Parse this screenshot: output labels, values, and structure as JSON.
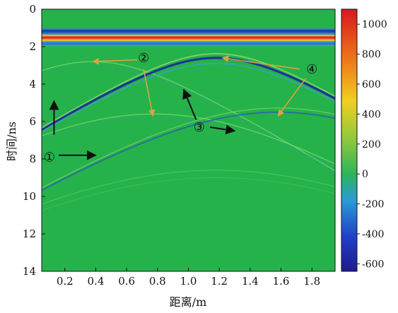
{
  "chart_data": {
    "type": "heatmap",
    "title": "",
    "xlabel": "距离/m",
    "ylabel": "时间/ns",
    "xlim": [
      0.05,
      1.95
    ],
    "ylim": [
      14,
      0
    ],
    "x_ticks": [
      "0.2",
      "0.4",
      "0.6",
      "0.8",
      "1.0",
      "1.2",
      "1.4",
      "1.6",
      "1.8"
    ],
    "x_tick_values": [
      0.2,
      0.4,
      0.6,
      0.8,
      1.0,
      1.2,
      1.4,
      1.6,
      1.8
    ],
    "y_ticks": [
      "0",
      "2",
      "4",
      "6",
      "8",
      "10",
      "12",
      "14"
    ],
    "y_tick_values": [
      0,
      2,
      4,
      6,
      8,
      10,
      12,
      14
    ],
    "colorbar": {
      "min": -650,
      "max": 1100,
      "ticks": [
        "1000",
        "800",
        "600",
        "400",
        "200",
        "0",
        "-200",
        "-400",
        "-600"
      ],
      "tick_values": [
        1000,
        800,
        600,
        400,
        200,
        0,
        -200,
        -400,
        -600
      ],
      "colormap": "jet"
    },
    "background_color": "#26b24a",
    "direct_wave": {
      "time_ns": [
        1.0,
        2.0
      ],
      "peak_value": 1050,
      "trough_value": -620
    },
    "hyperbolas": [
      {
        "apex_x": 0.38,
        "apex_t": 2.8,
        "strength": "weak"
      },
      {
        "apex_x": 0.78,
        "apex_t": 5.6,
        "strength": "weak"
      },
      {
        "apex_x": 1.18,
        "apex_t": 2.6,
        "strength": "strong"
      },
      {
        "apex_x": 1.58,
        "apex_t": 5.5,
        "strength": "medium"
      },
      {
        "apex_x": 1.18,
        "apex_t": 8.6,
        "strength": "faint"
      }
    ],
    "annotations": [
      {
        "label": "①",
        "x": 0.1,
        "t": 7.9
      },
      {
        "label": "②",
        "x": 0.71,
        "t": 2.6
      },
      {
        "label": "③",
        "x": 1.07,
        "t": 6.3
      },
      {
        "label": "④",
        "x": 1.8,
        "t": 3.2
      }
    ],
    "annotation_arrows": [
      {
        "from_x": 0.13,
        "from_t": 6.7,
        "to_x": 0.13,
        "to_t": 4.9,
        "color": "#111111"
      },
      {
        "from_x": 0.16,
        "from_t": 7.8,
        "to_x": 0.4,
        "to_t": 7.8,
        "color": "#111111"
      },
      {
        "from_x": 0.67,
        "from_t": 2.7,
        "to_x": 0.38,
        "to_t": 2.8,
        "color": "#e0a040"
      },
      {
        "from_x": 0.71,
        "from_t": 3.2,
        "to_x": 0.77,
        "to_t": 5.7,
        "color": "#e0a040"
      },
      {
        "from_x": 1.05,
        "from_t": 5.9,
        "to_x": 0.97,
        "to_t": 4.3,
        "color": "#111111"
      },
      {
        "from_x": 1.14,
        "from_t": 6.3,
        "to_x": 1.3,
        "to_t": 6.5,
        "color": "#111111"
      },
      {
        "from_x": 1.72,
        "from_t": 3.2,
        "to_x": 1.22,
        "to_t": 2.6,
        "color": "#e0a040"
      },
      {
        "from_x": 1.76,
        "from_t": 3.7,
        "to_x": 1.58,
        "to_t": 5.7,
        "color": "#e0a040"
      }
    ]
  }
}
